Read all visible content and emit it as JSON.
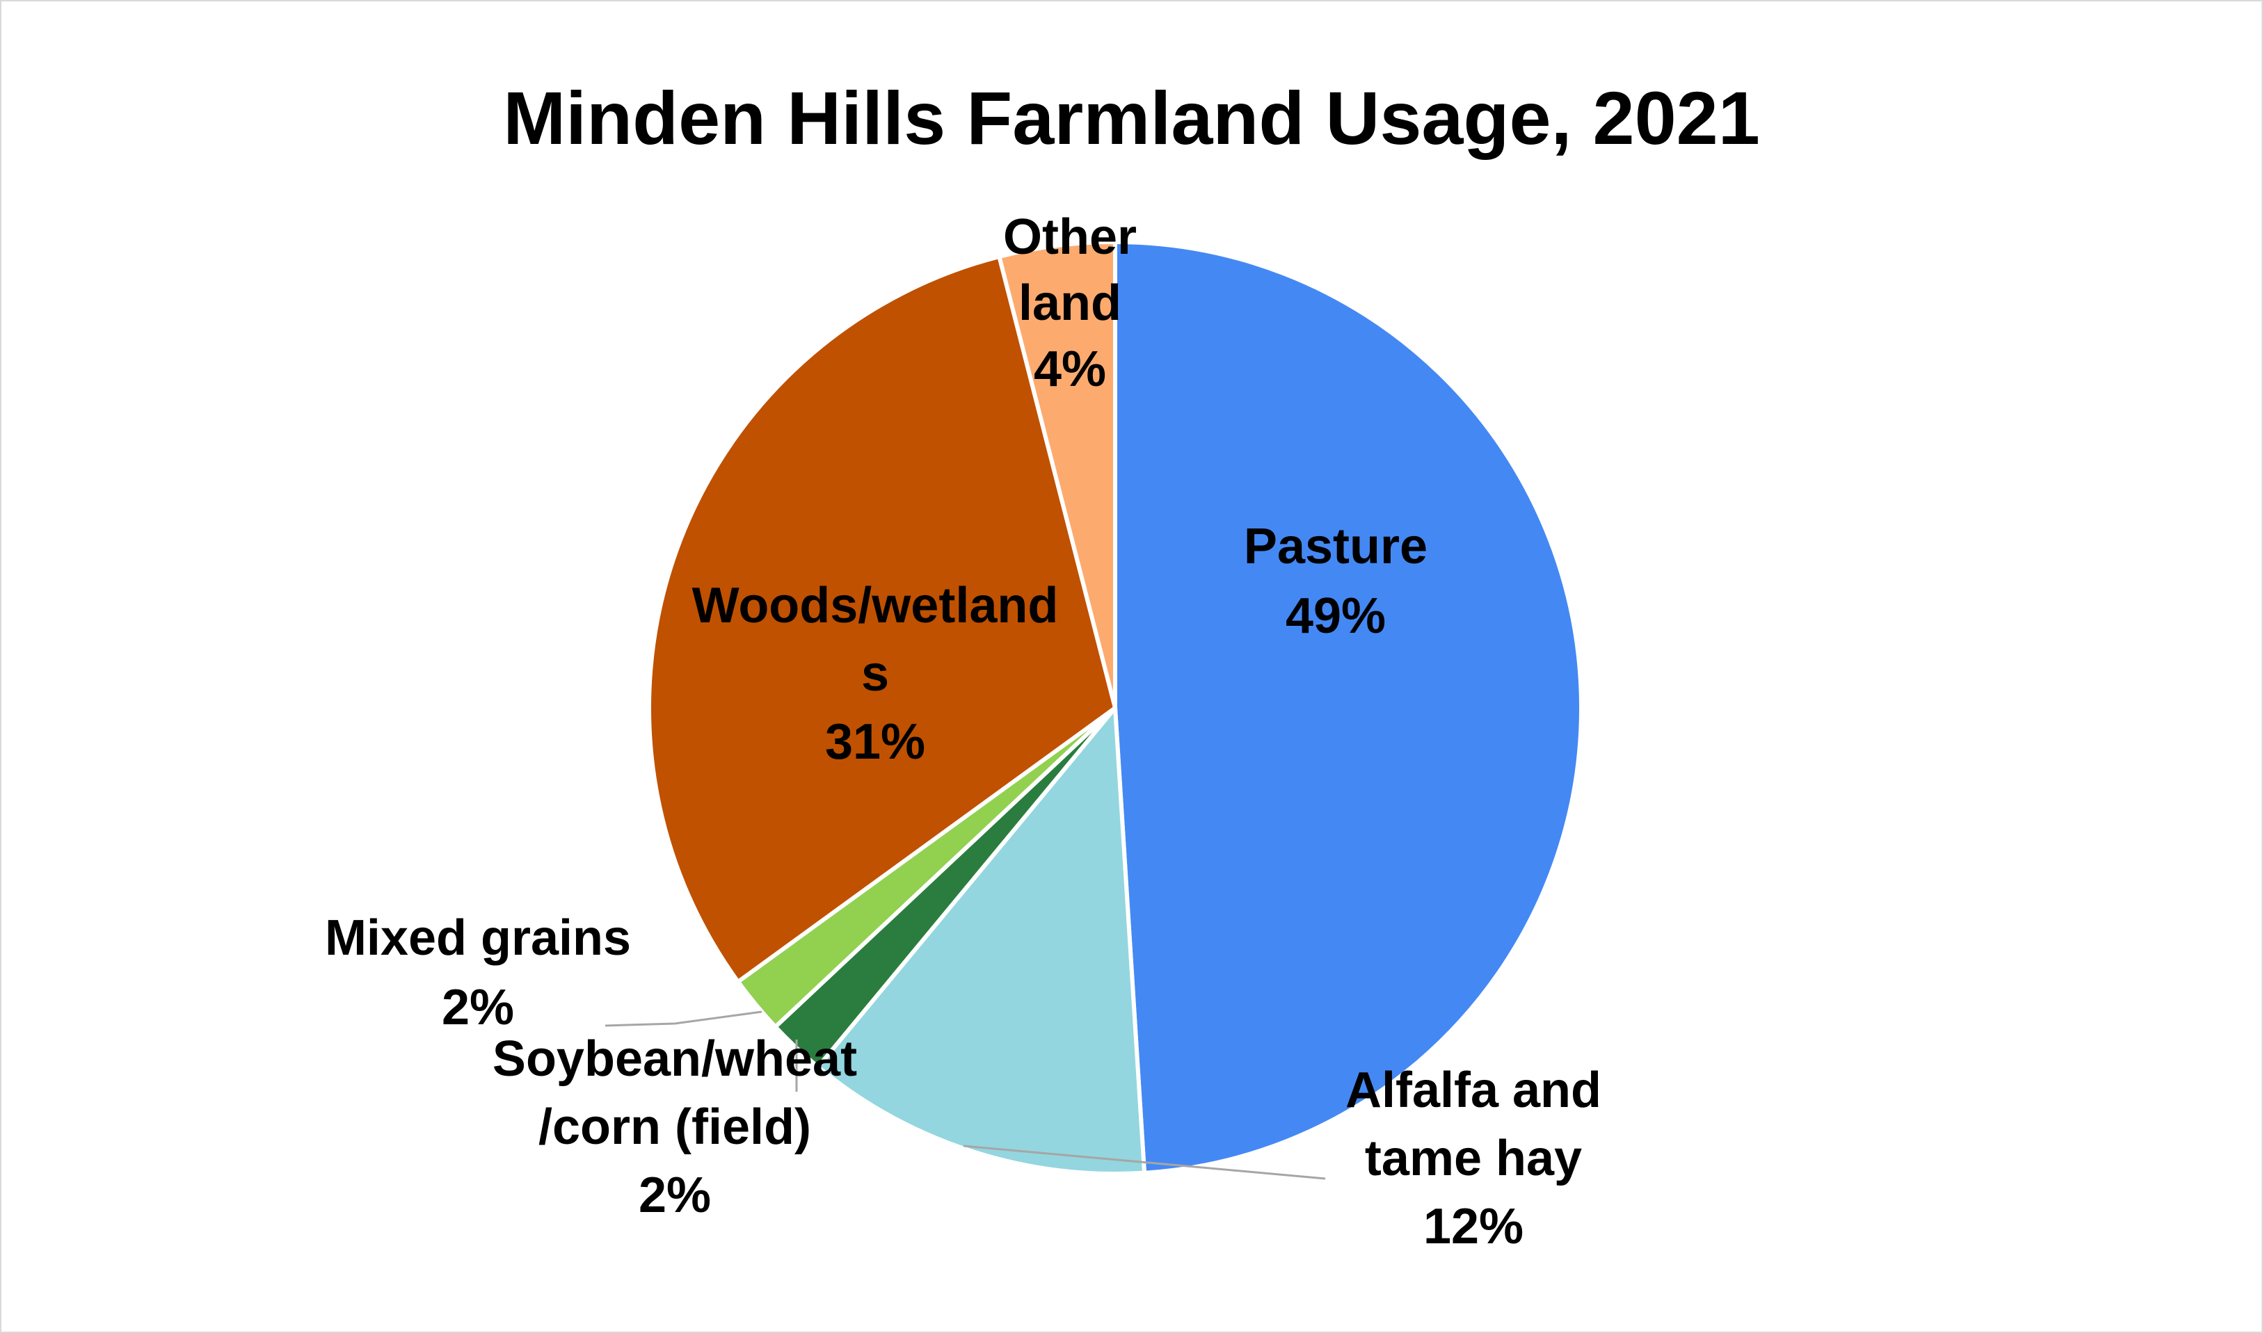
{
  "chart_data": {
    "type": "pie",
    "title": "Minden Hills Farmland Usage, 2021",
    "slices": [
      {
        "name": "Pasture",
        "value": 49,
        "label": "49%",
        "color": "#4488f4"
      },
      {
        "name": "Alfalfa and tame hay",
        "value": 12,
        "label": "12%",
        "color": "#93d6df"
      },
      {
        "name": "Soybean/wheat/corn (field)",
        "value": 2,
        "label": "2%",
        "color": "#2a7d3e"
      },
      {
        "name": "Mixed grains",
        "value": 2,
        "label": "2%",
        "color": "#92d050"
      },
      {
        "name": "Woods/wetlands",
        "value": 31,
        "label": "31%",
        "color": "#c05100"
      },
      {
        "name": "Other land",
        "value": 4,
        "label": "4%",
        "color": "#fdaa6f"
      }
    ],
    "label_lines": [
      [
        "Pasture",
        "49%"
      ],
      [
        "Alfalfa and",
        "tame hay",
        "12%"
      ],
      [
        "Soybean/wheat",
        "/corn (field)",
        "2%"
      ],
      [
        "Mixed grains",
        "2%"
      ],
      [
        "Woods/wetland",
        "s",
        "31%"
      ],
      [
        "Other",
        "land",
        "4%"
      ]
    ]
  }
}
